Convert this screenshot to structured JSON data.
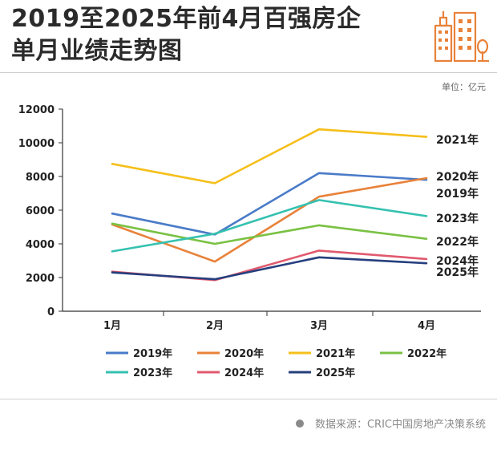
{
  "page": {
    "title_line1": "2019至2025年前4月百强房企",
    "title_line2": "单月业绩走势图",
    "unit": "单位：亿元",
    "source": "数据来源：CRIC中国房地产决策系统",
    "logo_icon": "buildings-icon",
    "source_icon": "dot-icon"
  },
  "chart_data": {
    "type": "line",
    "title": "2019至2025年前4月百强房企单月业绩走势图",
    "xlabel": "",
    "ylabel": "",
    "categories": [
      "1月",
      "2月",
      "3月",
      "4月"
    ],
    "ylim": [
      0,
      12000
    ],
    "yticks": [
      0,
      2000,
      4000,
      6000,
      8000,
      10000,
      12000
    ],
    "grid": false,
    "legend_position": "bottom",
    "series": [
      {
        "name": "2019年",
        "color": "#4a7bc8",
        "values": [
          5800,
          4550,
          8200,
          7800
        ]
      },
      {
        "name": "2020年",
        "color": "#e8823a",
        "values": [
          5150,
          2950,
          6800,
          7900
        ]
      },
      {
        "name": "2021年",
        "color": "#f5bf1a",
        "values": [
          8750,
          7600,
          10800,
          10350
        ]
      },
      {
        "name": "2022年",
        "color": "#7ac143",
        "values": [
          5200,
          4000,
          5100,
          4300
        ]
      },
      {
        "name": "2023年",
        "color": "#35c1b0",
        "values": [
          3550,
          4600,
          6600,
          5650
        ]
      },
      {
        "name": "2024年",
        "color": "#e05a6e",
        "values": [
          2350,
          1850,
          3600,
          3100
        ]
      },
      {
        "name": "2025年",
        "color": "#263f7e",
        "values": [
          2300,
          1900,
          3200,
          2850
        ]
      }
    ],
    "end_labels": [
      {
        "series": "2021年",
        "text": "2021年"
      },
      {
        "series": "2020年",
        "text": "2020年"
      },
      {
        "series": "2019年",
        "text": "2019年"
      },
      {
        "series": "2023年",
        "text": "2023年"
      },
      {
        "series": "2022年",
        "text": "2022年"
      },
      {
        "series": "2024年",
        "text": "2024年"
      },
      {
        "series": "2025年",
        "text": "2025年"
      }
    ]
  }
}
